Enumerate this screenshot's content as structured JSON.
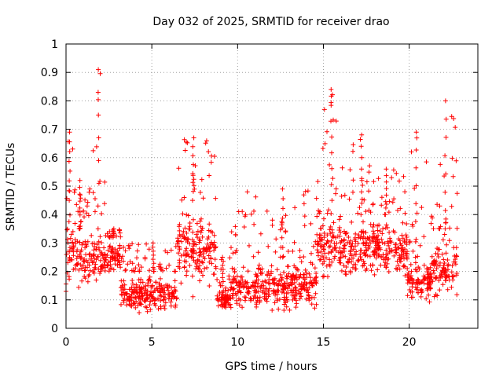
{
  "chart_data": {
    "type": "scatter",
    "title": "Day 032 of 2025, SRMTID for receiver drao",
    "xlabel": "GPS time / hours",
    "ylabel": "SRMTID / TECUs",
    "xlim": [
      0,
      24
    ],
    "ylim": [
      0,
      1
    ],
    "xticks": [
      0,
      5,
      10,
      15,
      20
    ],
    "xtick_labels": [
      "0",
      "5",
      "10",
      "15",
      "20"
    ],
    "yticks": [
      0,
      0.1,
      0.2,
      0.3,
      0.4,
      0.5,
      0.6,
      0.7,
      0.8,
      0.9,
      1
    ],
    "ytick_labels": [
      "0",
      "0.1",
      "0.2",
      "0.3",
      "0.4",
      "0.5",
      "0.6",
      "0.7",
      "0.8",
      "0.9",
      "1"
    ],
    "grid": true,
    "marker": "+",
    "color": "#ff0000",
    "series": [
      {
        "name": "SRMTID",
        "description": "dense scatter of values, approximate envelope by time segment",
        "segments": [
          {
            "x_range": [
              0.0,
              0.5
            ],
            "y_range": [
              0.08,
              0.45
            ],
            "peak": 0.69
          },
          {
            "x_range": [
              0.5,
              1.5
            ],
            "y_range": [
              0.12,
              0.35
            ],
            "peak": 0.52
          },
          {
            "x_range": [
              1.5,
              2.3
            ],
            "y_range": [
              0.15,
              0.35
            ],
            "peak": 0.91
          },
          {
            "x_range": [
              2.3,
              3.2
            ],
            "y_range": [
              0.18,
              0.32
            ],
            "peak": 0.35
          },
          {
            "x_range": [
              3.2,
              6.5
            ],
            "y_range": [
              0.04,
              0.2
            ],
            "peak": 0.3
          },
          {
            "x_range": [
              6.5,
              8.8
            ],
            "y_range": [
              0.1,
              0.45
            ],
            "peak": 0.67
          },
          {
            "x_range": [
              8.8,
              9.6
            ],
            "y_range": [
              0.06,
              0.15
            ],
            "peak": 0.25
          },
          {
            "x_range": [
              9.6,
              14.6
            ],
            "y_range": [
              0.04,
              0.25
            ],
            "peak": 0.49
          },
          {
            "x_range": [
              14.6,
              16.0
            ],
            "y_range": [
              0.15,
              0.45
            ],
            "peak": 0.84
          },
          {
            "x_range": [
              16.0,
              18.0
            ],
            "y_range": [
              0.15,
              0.4
            ],
            "peak": 0.68
          },
          {
            "x_range": [
              18.0,
              19.9
            ],
            "y_range": [
              0.15,
              0.4
            ],
            "peak": 0.56
          },
          {
            "x_range": [
              19.9,
              21.3
            ],
            "y_range": [
              0.08,
              0.25
            ],
            "peak": 0.69
          },
          {
            "x_range": [
              21.3,
              22.8
            ],
            "y_range": [
              0.08,
              0.35
            ],
            "peak": 0.8
          }
        ],
        "x_min": 0.0,
        "x_max": 22.8,
        "n_points": 1800
      }
    ]
  }
}
